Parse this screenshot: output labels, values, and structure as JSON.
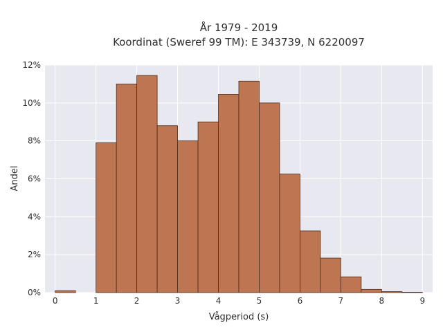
{
  "chart_data": {
    "type": "bar",
    "title": "År 1979 - 2019",
    "subtitle": "Koordinat (Sweref 99 TM): E 343739, N 6220097",
    "xlabel": "Vågperiod (s)",
    "ylabel": "Andel",
    "bin_width": 0.5,
    "bins": [
      0,
      0.5,
      1,
      1.5,
      2,
      2.5,
      3,
      3.5,
      4,
      4.5,
      5,
      5.5,
      6,
      6.5,
      7,
      7.5,
      8,
      8.5
    ],
    "values": [
      0.1,
      0,
      7.9,
      11.0,
      11.45,
      8.8,
      8.0,
      9.0,
      10.45,
      11.15,
      10.0,
      6.25,
      3.25,
      1.82,
      0.83,
      0.17,
      0.05,
      0.02
    ],
    "xlim": [
      -0.25,
      9.25
    ],
    "ylim": [
      0,
      12
    ],
    "x_ticks": [
      "0",
      "1",
      "2",
      "3",
      "4",
      "5",
      "6",
      "7",
      "8",
      "9"
    ],
    "y_ticks": [
      "0%",
      "2%",
      "4%",
      "6%",
      "8%",
      "10%",
      "12%"
    ],
    "grid": true,
    "colors": {
      "bar": "#bd7552",
      "bar_edge": "#4a2a1a",
      "plot_bg": "#e7e8f0",
      "grid": "#ffffff"
    }
  }
}
